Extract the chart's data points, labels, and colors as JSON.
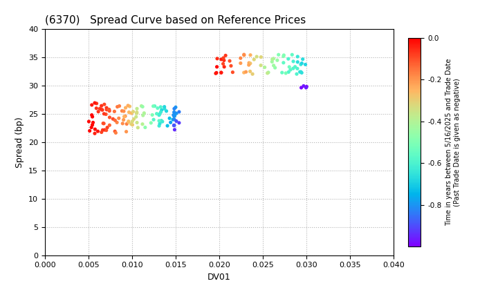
{
  "title": "(6370)   Spread Curve based on Reference Prices",
  "xlabel": "DV01",
  "ylabel": "Spread (bp)",
  "xlim": [
    0.0,
    0.04
  ],
  "ylim": [
    0,
    40
  ],
  "xticks": [
    0.0,
    0.005,
    0.01,
    0.015,
    0.02,
    0.025,
    0.03,
    0.035,
    0.04
  ],
  "yticks": [
    0,
    5,
    10,
    15,
    20,
    25,
    30,
    35,
    40
  ],
  "colorbar_label_line1": "Time in years between 5/16/2025 and Trade Date",
  "colorbar_label_line2": "(Past Trade Date is given as negative)",
  "colorbar_vmin": -1.0,
  "colorbar_vmax": 0.0,
  "colorbar_ticks": [
    0.0,
    -0.2,
    -0.4,
    -0.6,
    -0.8
  ],
  "background_color": "#ffffff",
  "title_fontsize": 11,
  "axis_fontsize": 9,
  "tick_fontsize": 8
}
